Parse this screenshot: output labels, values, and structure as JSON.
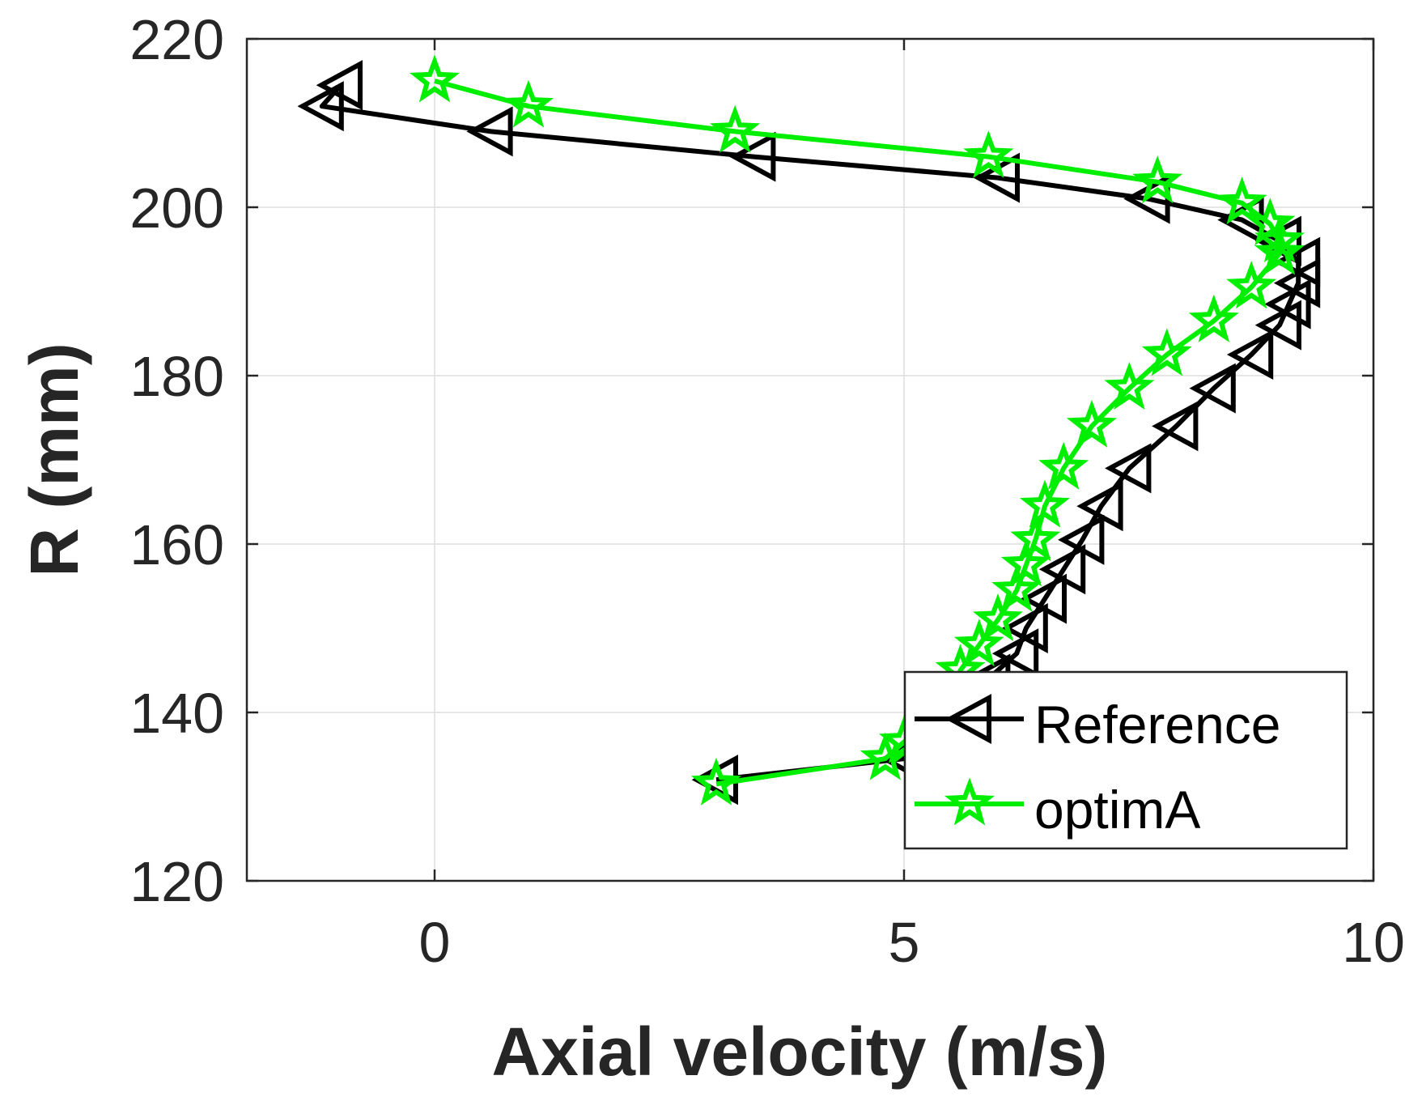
{
  "chart_data": {
    "type": "line",
    "xlabel": "Axial velocity (m/s)",
    "ylabel": "R (mm)",
    "xlim": [
      -2,
      10
    ],
    "ylim": [
      120,
      220
    ],
    "xticks": [
      0,
      5,
      10
    ],
    "yticks": [
      120,
      140,
      160,
      180,
      200,
      220
    ],
    "grid": true,
    "legend_position": "bottom-right",
    "series": [
      {
        "name": "Reference",
        "color": "#000000",
        "marker": "triangle-left",
        "points": [
          {
            "x": -1.0,
            "y": 214.5
          },
          {
            "x": -1.2,
            "y": 212.0
          },
          {
            "x": 0.6,
            "y": 209.0
          },
          {
            "x": 3.4,
            "y": 206.0
          },
          {
            "x": 6.0,
            "y": 203.5
          },
          {
            "x": 7.6,
            "y": 201.0
          },
          {
            "x": 8.6,
            "y": 198.5
          },
          {
            "x": 9.0,
            "y": 196.0
          },
          {
            "x": 9.2,
            "y": 193.5
          },
          {
            "x": 9.2,
            "y": 191.0
          },
          {
            "x": 9.1,
            "y": 188.5
          },
          {
            "x": 9.0,
            "y": 186.0
          },
          {
            "x": 8.7,
            "y": 182.5
          },
          {
            "x": 8.3,
            "y": 178.5
          },
          {
            "x": 7.9,
            "y": 174.0
          },
          {
            "x": 7.4,
            "y": 169.0
          },
          {
            "x": 7.1,
            "y": 164.5
          },
          {
            "x": 6.9,
            "y": 160.5
          },
          {
            "x": 6.7,
            "y": 157.0
          },
          {
            "x": 6.5,
            "y": 153.5
          },
          {
            "x": 6.3,
            "y": 150.0
          },
          {
            "x": 6.2,
            "y": 147.0
          },
          {
            "x": 5.9,
            "y": 144.0
          },
          {
            "x": 5.7,
            "y": 141.0
          },
          {
            "x": 5.3,
            "y": 137.5
          },
          {
            "x": 5.0,
            "y": 134.5
          },
          {
            "x": 3.0,
            "y": 132.0
          }
        ]
      },
      {
        "name": "optimA",
        "color": "#00ee00",
        "marker": "pentagram",
        "points": [
          {
            "x": 0.0,
            "y": 215.0
          },
          {
            "x": 1.0,
            "y": 212.0
          },
          {
            "x": 3.2,
            "y": 209.0
          },
          {
            "x": 5.9,
            "y": 206.0
          },
          {
            "x": 7.7,
            "y": 203.0
          },
          {
            "x": 8.6,
            "y": 200.5
          },
          {
            "x": 8.9,
            "y": 198.0
          },
          {
            "x": 9.0,
            "y": 196.0
          },
          {
            "x": 9.0,
            "y": 194.5
          },
          {
            "x": 8.7,
            "y": 190.5
          },
          {
            "x": 8.3,
            "y": 186.5
          },
          {
            "x": 7.8,
            "y": 182.5
          },
          {
            "x": 7.4,
            "y": 178.5
          },
          {
            "x": 7.0,
            "y": 174.0
          },
          {
            "x": 6.7,
            "y": 169.0
          },
          {
            "x": 6.5,
            "y": 164.5
          },
          {
            "x": 6.4,
            "y": 160.5
          },
          {
            "x": 6.3,
            "y": 157.5
          },
          {
            "x": 6.2,
            "y": 154.5
          },
          {
            "x": 6.0,
            "y": 151.0
          },
          {
            "x": 5.8,
            "y": 148.0
          },
          {
            "x": 5.6,
            "y": 145.0
          },
          {
            "x": 5.5,
            "y": 142.0
          },
          {
            "x": 5.3,
            "y": 139.0
          },
          {
            "x": 5.0,
            "y": 136.5
          },
          {
            "x": 4.8,
            "y": 134.5
          },
          {
            "x": 3.0,
            "y": 131.5
          }
        ]
      }
    ]
  }
}
